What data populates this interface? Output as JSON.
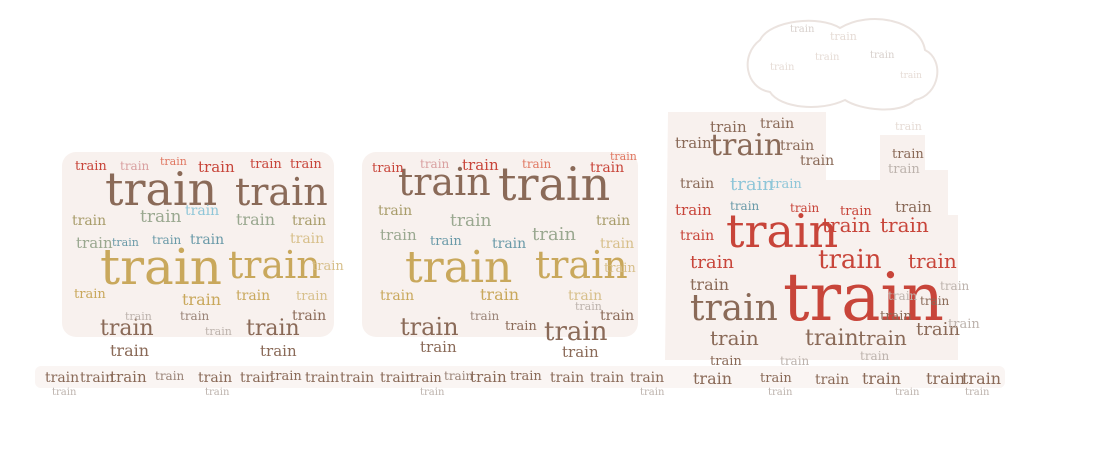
{
  "word": "train",
  "palette": {
    "red": "#c8453a",
    "salmon": "#e07862",
    "brown": "#8a6a58",
    "taupe": "#9a8478",
    "gold": "#c9a85c",
    "sand": "#d7bf8a",
    "olive": "#a89c6a",
    "sage": "#9aa890",
    "sky": "#8fc6d8",
    "teal": "#6a9aa8",
    "rose": "#d9a0a0",
    "grey": "#bdb3ad",
    "light": "#e6dcd6",
    "smoke": "#d8d0cc"
  },
  "silhouette_fill": "#f7efec"
}
